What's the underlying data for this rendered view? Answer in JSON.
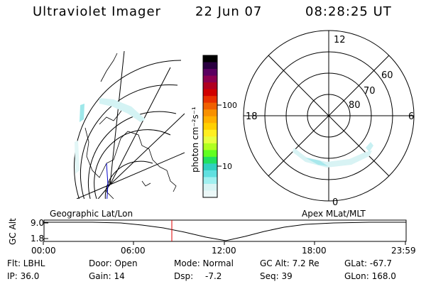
{
  "header": {
    "instrument": "Ultraviolet Imager",
    "date": "22 Jun 07",
    "time": "08:28:25 UT"
  },
  "colorbar": {
    "unit_label": "photon cm⁻²s⁻¹",
    "ticks": [
      "100",
      "10"
    ],
    "colors": [
      "#000000",
      "#2a0040",
      "#5a0060",
      "#8a0050",
      "#b00020",
      "#d00000",
      "#e83000",
      "#f06000",
      "#f89000",
      "#ffb000",
      "#ffd000",
      "#ffef20",
      "#e8ff40",
      "#b0ff20",
      "#60ff20",
      "#20e060",
      "#30d0c0",
      "#60e0e0",
      "#a0f0f0",
      "#d8f4f4",
      "#ecf8f8"
    ]
  },
  "geo_map": {
    "label": "Geographic Lat/Lon"
  },
  "polar_plot": {
    "label": "Apex MLat/MLT",
    "mlt_labels": {
      "top": "12",
      "left": "18",
      "right": "6",
      "bottom": "0"
    },
    "lat_labels": [
      "60",
      "70",
      "80"
    ]
  },
  "altitude_plot": {
    "ylabel": "GC Alt",
    "yticks": [
      "9.0",
      "1.8"
    ],
    "xticks": [
      "00:00",
      "06:00",
      "12:00",
      "18:00",
      "23:59"
    ],
    "current_time_marker_hours": 8.47
  },
  "status": {
    "filter": "Flt: LBHL",
    "door": "Door: Open",
    "mode": "Mode: Normal",
    "gc_alt": "GC Alt: 7.2 Re",
    "glat": "GLat: -67.7",
    "ip": "IP: 36.0",
    "gain": "Gain: 14",
    "dsp_label": "Dsp:",
    "dsp_value": "-7.2",
    "seq": "Seq: 39",
    "glon": "GLon: 168.0"
  }
}
